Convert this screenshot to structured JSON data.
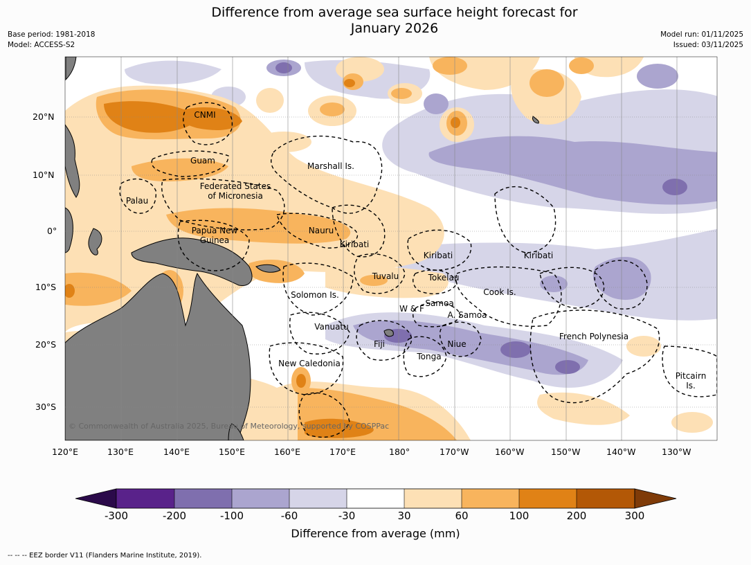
{
  "title_line1": "Difference from average sea surface height forecast for",
  "title_line2": "January 2026",
  "meta_left": {
    "base_period": "Base period: 1981-2018",
    "model": "Model: ACCESS-S2"
  },
  "meta_right": {
    "model_run": "Model run: 01/11/2025",
    "issued": "Issued: 03/11/2025"
  },
  "lon_labels": [
    "120°E",
    "130°E",
    "140°E",
    "150°E",
    "160°E",
    "170°E",
    "180°",
    "170°W",
    "160°W",
    "150°W",
    "140°W",
    "130°W"
  ],
  "lat_labels": [
    "20°N",
    "10°N",
    "0°",
    "10°S",
    "20°S",
    "30°S"
  ],
  "regions": [
    {
      "name": "CNMI"
    },
    {
      "name": "Guam"
    },
    {
      "name": "Marshall Is."
    },
    {
      "name": "Federated States"
    },
    {
      "name": "of Micronesia"
    },
    {
      "name": "Palau"
    },
    {
      "name": "Papua New"
    },
    {
      "name": "Guinea"
    },
    {
      "name": "Nauru"
    },
    {
      "name": "Kiribati"
    },
    {
      "name": "Kiribati"
    },
    {
      "name": "Kiribati"
    },
    {
      "name": "Tuvalu"
    },
    {
      "name": "Tokelau"
    },
    {
      "name": "Solomon Is."
    },
    {
      "name": "Cook Is."
    },
    {
      "name": "Samoa"
    },
    {
      "name": "W & F"
    },
    {
      "name": "A. Samoa"
    },
    {
      "name": "Vanuatu"
    },
    {
      "name": "Fiji"
    },
    {
      "name": "Niue"
    },
    {
      "name": "French Polynesia"
    },
    {
      "name": "Tonga"
    },
    {
      "name": "New Caledonia"
    },
    {
      "name": "Pitcairn"
    },
    {
      "name": "Is."
    }
  ],
  "copyright": "© Commonwealth of Australia 2025, Bureau of Meteorology, supported by COSPPac",
  "colorbar": {
    "title": "Difference from average (mm)",
    "ticks": [
      "-300",
      "-200",
      "-100",
      "-60",
      "-30",
      "30",
      "60",
      "100",
      "200",
      "300"
    ],
    "colors": {
      "lt_-300": "#2b0a4a",
      "-300_-200": "#59228a",
      "-200_-100": "#7f6fae",
      "-100_-60": "#aba5cf",
      "-60_-30": "#d6d5e8",
      "-30_30": "#ffffff",
      "30_60": "#fde0b5",
      "60_100": "#f8b45d",
      "100_200": "#e08216",
      "200_300": "#b35806",
      "gt_300": "#7f3b08"
    }
  },
  "land_color": "#808080",
  "footer": "--  --  -- EEZ border V11 (Flanders Marine Institute, 2019)."
}
